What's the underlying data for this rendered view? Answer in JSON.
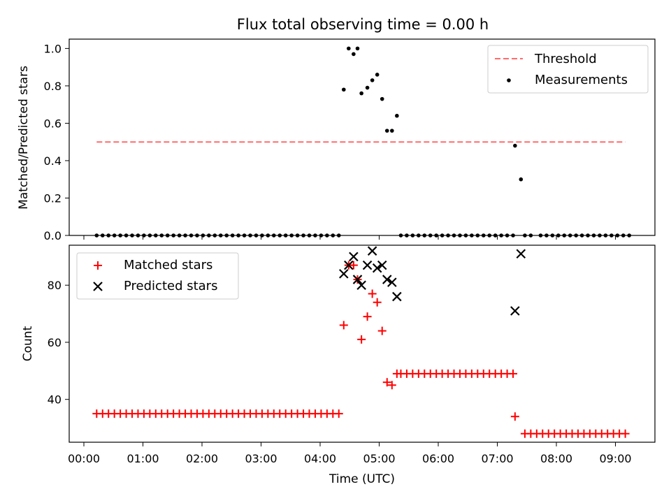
{
  "chart_data": [
    {
      "type": "scatter",
      "title": "Flux total observing time = 0.00 h",
      "ylabel": "Matched/Predicted stars",
      "ylim": [
        0,
        1.05
      ],
      "yticks": [
        "0.0",
        "0.2",
        "0.4",
        "0.6",
        "0.8",
        "1.0"
      ],
      "legend_position": "top-right",
      "colors": {
        "threshold": "#ff6b6b",
        "measurements": "#000000"
      },
      "threshold": {
        "name": "Threshold",
        "value": 0.5,
        "x_range": [
          "00:13",
          "09:10"
        ]
      },
      "series": [
        {
          "name": "Measurements",
          "zero_runs": [
            {
              "start": "00:13",
              "end": "04:20",
              "step_min": 6
            },
            {
              "start": "05:22",
              "end": "07:16",
              "step_min": 6
            },
            {
              "start": "07:28",
              "end": "07:34",
              "step_min": 6
            },
            {
              "start": "07:44",
              "end": "09:14",
              "step_min": 6
            }
          ],
          "points": [
            {
              "x": "04:24",
              "y": 0.78
            },
            {
              "x": "04:29",
              "y": 1.0
            },
            {
              "x": "04:34",
              "y": 0.97
            },
            {
              "x": "04:38",
              "y": 1.0
            },
            {
              "x": "04:42",
              "y": 0.76
            },
            {
              "x": "04:48",
              "y": 0.79
            },
            {
              "x": "04:53",
              "y": 0.83
            },
            {
              "x": "04:58",
              "y": 0.86
            },
            {
              "x": "05:03",
              "y": 0.73
            },
            {
              "x": "05:08",
              "y": 0.56
            },
            {
              "x": "05:13",
              "y": 0.56
            },
            {
              "x": "05:18",
              "y": 0.64
            },
            {
              "x": "07:18",
              "y": 0.48
            },
            {
              "x": "07:24",
              "y": 0.3
            }
          ]
        }
      ]
    },
    {
      "type": "scatter",
      "xlabel": "Time (UTC)",
      "ylabel": "Count",
      "ylim": [
        25,
        94
      ],
      "yticks": [
        "40",
        "60",
        "80"
      ],
      "xticks": [
        "00:00",
        "01:00",
        "02:00",
        "03:00",
        "04:00",
        "05:00",
        "06:00",
        "07:00",
        "08:00",
        "09:00"
      ],
      "legend_position": "top-left",
      "colors": {
        "matched": "#ff0000",
        "predicted": "#000000"
      },
      "series": [
        {
          "name": "Matched stars",
          "runs": [
            {
              "start": "00:13",
              "end": "04:20",
              "step_min": 6,
              "y": 35
            },
            {
              "start": "05:22",
              "end": "07:16",
              "step_min": 6,
              "y": 49
            },
            {
              "start": "07:28",
              "end": "09:14",
              "step_min": 6,
              "y": 28
            }
          ],
          "points": [
            {
              "x": "04:24",
              "y": 66
            },
            {
              "x": "04:29",
              "y": 87
            },
            {
              "x": "04:34",
              "y": 87
            },
            {
              "x": "04:38",
              "y": 82
            },
            {
              "x": "04:42",
              "y": 61
            },
            {
              "x": "04:48",
              "y": 69
            },
            {
              "x": "04:53",
              "y": 77
            },
            {
              "x": "04:58",
              "y": 74
            },
            {
              "x": "05:03",
              "y": 64
            },
            {
              "x": "05:08",
              "y": 46
            },
            {
              "x": "05:13",
              "y": 45
            },
            {
              "x": "05:18",
              "y": 49
            },
            {
              "x": "07:18",
              "y": 34
            }
          ]
        },
        {
          "name": "Predicted stars",
          "points": [
            {
              "x": "04:24",
              "y": 84
            },
            {
              "x": "04:29",
              "y": 87
            },
            {
              "x": "04:34",
              "y": 90
            },
            {
              "x": "04:38",
              "y": 82
            },
            {
              "x": "04:42",
              "y": 80
            },
            {
              "x": "04:48",
              "y": 87
            },
            {
              "x": "04:53",
              "y": 92
            },
            {
              "x": "04:58",
              "y": 86
            },
            {
              "x": "05:03",
              "y": 87
            },
            {
              "x": "05:08",
              "y": 82
            },
            {
              "x": "05:13",
              "y": 81
            },
            {
              "x": "05:18",
              "y": 76
            },
            {
              "x": "07:18",
              "y": 71
            },
            {
              "x": "07:24",
              "y": 91
            }
          ]
        }
      ]
    }
  ]
}
